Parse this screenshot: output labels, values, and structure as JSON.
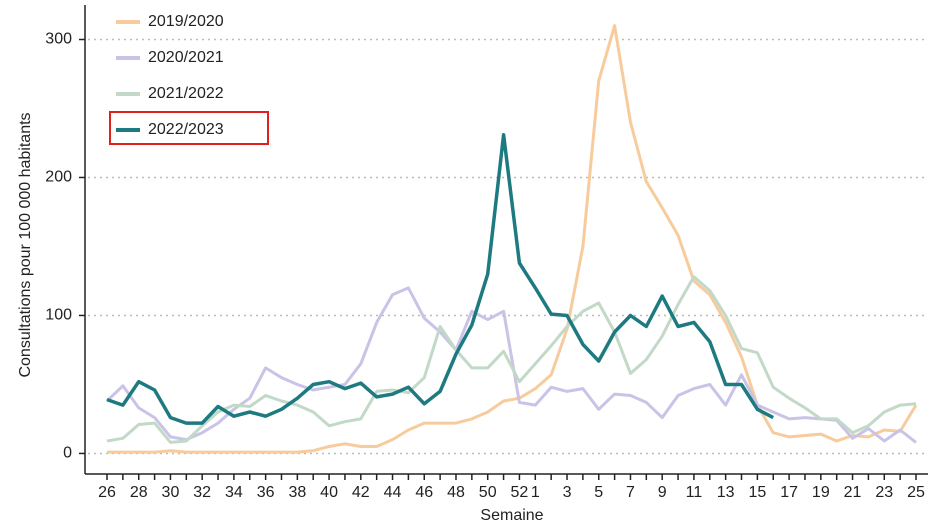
{
  "chart_data": {
    "type": "line",
    "x_label": "Semaine",
    "y_label": "Consultations pour 100 000 habitants",
    "categories": [
      "26",
      null,
      "28",
      null,
      "30",
      null,
      "32",
      null,
      "34",
      null,
      "36",
      null,
      "38",
      null,
      "40",
      null,
      "42",
      null,
      "44",
      null,
      "46",
      null,
      "48",
      null,
      "50",
      null,
      "52",
      "1",
      null,
      "3",
      null,
      "5",
      null,
      "7",
      null,
      "9",
      null,
      "11",
      null,
      "13",
      null,
      "15",
      null,
      "17",
      null,
      "19",
      null,
      "21",
      null,
      "23",
      null,
      "25"
    ],
    "series": [
      {
        "name": "2019/2020",
        "color": "#f8cb9c",
        "values": [
          1,
          1,
          1,
          1,
          2,
          1,
          1,
          1,
          1,
          1,
          1,
          1,
          1,
          2,
          5,
          7,
          5,
          5,
          10,
          17,
          22,
          22,
          22,
          25,
          30,
          38,
          40,
          47,
          57,
          90,
          150,
          270,
          310,
          240,
          197,
          178,
          158,
          125,
          115,
          95,
          70,
          35,
          15,
          12,
          13,
          14,
          9,
          13,
          12,
          17,
          16,
          35
        ]
      },
      {
        "name": "2020/2021",
        "color": "#c9c3e8",
        "values": [
          38,
          49,
          33,
          26,
          12,
          10,
          15,
          22,
          32,
          40,
          62,
          55,
          50,
          46,
          48,
          50,
          65,
          95,
          115,
          120,
          98,
          88,
          75,
          103,
          97,
          103,
          37,
          35,
          48,
          45,
          47,
          32,
          43,
          42,
          37,
          26,
          42,
          47,
          50,
          35,
          57,
          35,
          30,
          25,
          26,
          25,
          24,
          11,
          18,
          9,
          17,
          8
        ]
      },
      {
        "name": "2021/2022",
        "color": "#c2d9c8",
        "values": [
          9,
          11,
          21,
          22,
          8,
          9,
          20,
          30,
          35,
          34,
          42,
          38,
          35,
          30,
          20,
          23,
          25,
          45,
          46,
          44,
          55,
          92,
          75,
          62,
          62,
          74,
          52,
          65,
          78,
          92,
          103,
          109,
          88,
          58,
          68,
          85,
          108,
          128,
          118,
          100,
          76,
          73,
          48,
          40,
          33,
          25,
          25,
          15,
          20,
          30,
          35,
          36
        ]
      },
      {
        "name": "2022/2023",
        "color": "#1d7a80",
        "values": [
          39,
          35,
          52,
          46,
          26,
          22,
          22,
          34,
          27,
          30,
          27,
          32,
          40,
          50,
          52,
          47,
          51,
          41,
          43,
          48,
          36,
          45,
          72,
          93,
          130,
          231,
          138,
          120,
          101,
          100,
          79,
          67,
          88,
          100,
          92,
          114,
          92,
          95,
          81,
          50,
          50,
          32,
          26,
          null,
          null,
          null,
          null,
          null,
          null,
          null,
          null,
          null
        ]
      }
    ],
    "ylim": [
      -12,
      325
    ],
    "yticks": [
      0,
      100,
      200,
      300
    ],
    "grid": true
  }
}
